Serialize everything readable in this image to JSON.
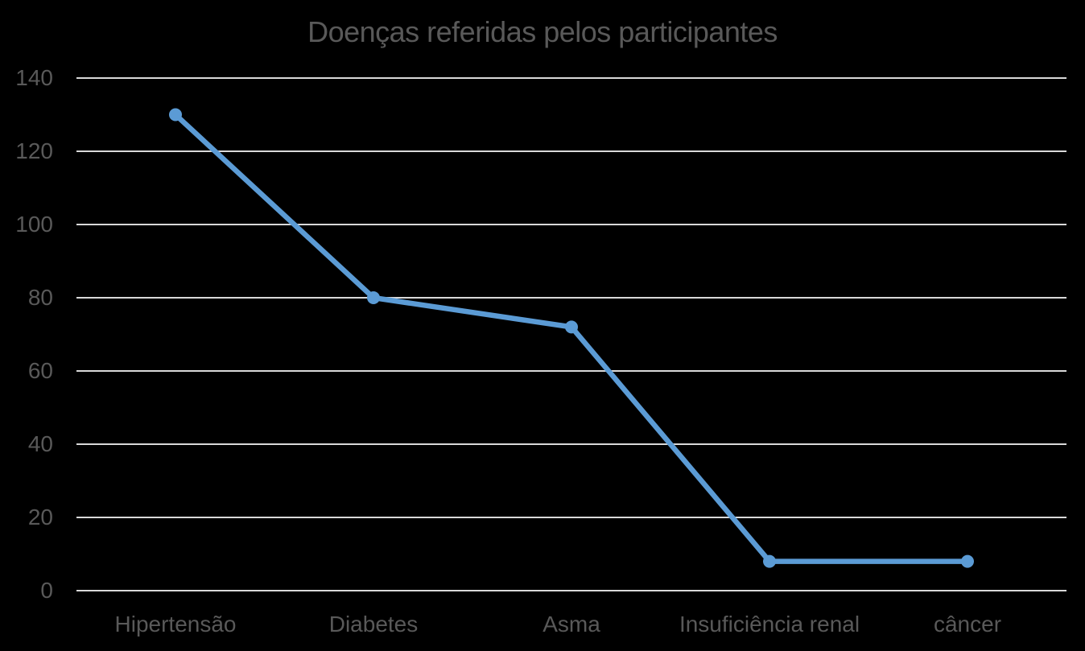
{
  "chart_data": {
    "type": "line",
    "title": "Doenças referidas pelos participantes",
    "categories": [
      "Hipertensão",
      "Diabetes",
      "Asma",
      "Insuficiência renal",
      "câncer"
    ],
    "values": [
      130,
      80,
      72,
      8,
      8
    ],
    "yticks": [
      0,
      20,
      40,
      60,
      80,
      100,
      120,
      140
    ],
    "ylim": [
      0,
      140
    ],
    "xlabel": "",
    "ylabel": "",
    "grid": true,
    "legend": false,
    "marker": "circle",
    "colors": {
      "series": "#5b9bd5",
      "gridlines": "#d9d9d9",
      "labels": "#595959",
      "title": "#595959",
      "background": "#000000"
    }
  }
}
